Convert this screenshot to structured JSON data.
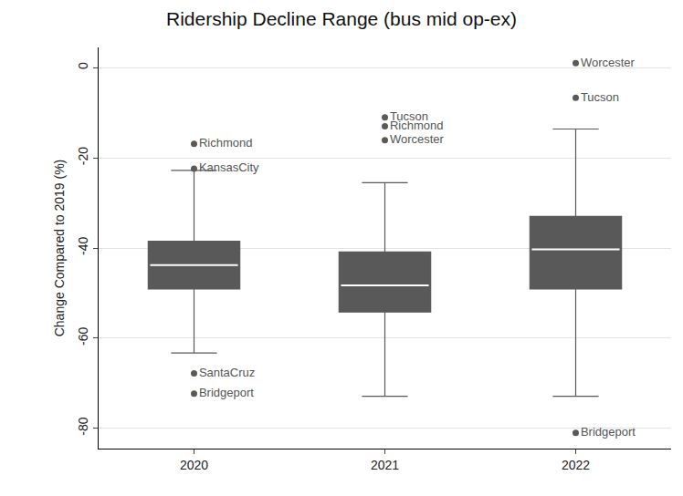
{
  "chart_data": {
    "type": "box",
    "title": "Ridership Decline Range (bus mid op-ex)",
    "y_label": "Change Compared to 2019 (%)",
    "categories": [
      "2020",
      "2021",
      "2022"
    ],
    "q1": [
      -49.1,
      -54.2,
      -49.1
    ],
    "median": [
      -43.8,
      -48.3,
      -40.3
    ],
    "q3": [
      -38.5,
      -40.9,
      -33.0
    ],
    "whisker_low": [
      -63.3,
      -72.9,
      -72.9
    ],
    "whisker_high": [
      -22.8,
      -25.5,
      -13.6
    ],
    "outliers": [
      {
        "category": "2020",
        "value": -16.9,
        "label": "Richmond"
      },
      {
        "category": "2020",
        "value": -22.4,
        "label": "KansasCity"
      },
      {
        "category": "2020",
        "value": -67.8,
        "label": "SantaCruz"
      },
      {
        "category": "2020",
        "value": -72.3,
        "label": "Bridgeport"
      },
      {
        "category": "2021",
        "value": -11.0,
        "label": "Tucson"
      },
      {
        "category": "2021",
        "value": -13.0,
        "label": "Richmond"
      },
      {
        "category": "2021",
        "value": -16.1,
        "label": "Worcester"
      },
      {
        "category": "2022",
        "value": 1.0,
        "label": "Worcester"
      },
      {
        "category": "2022",
        "value": -6.7,
        "label": "Tucson"
      },
      {
        "category": "2022",
        "value": -81.0,
        "label": "Bridgeport"
      }
    ],
    "color": "#595959",
    "ylim": [
      -84.5,
      4.5
    ],
    "yticks": [
      -80,
      -60,
      -40,
      -20,
      0
    ],
    "grid": true
  }
}
